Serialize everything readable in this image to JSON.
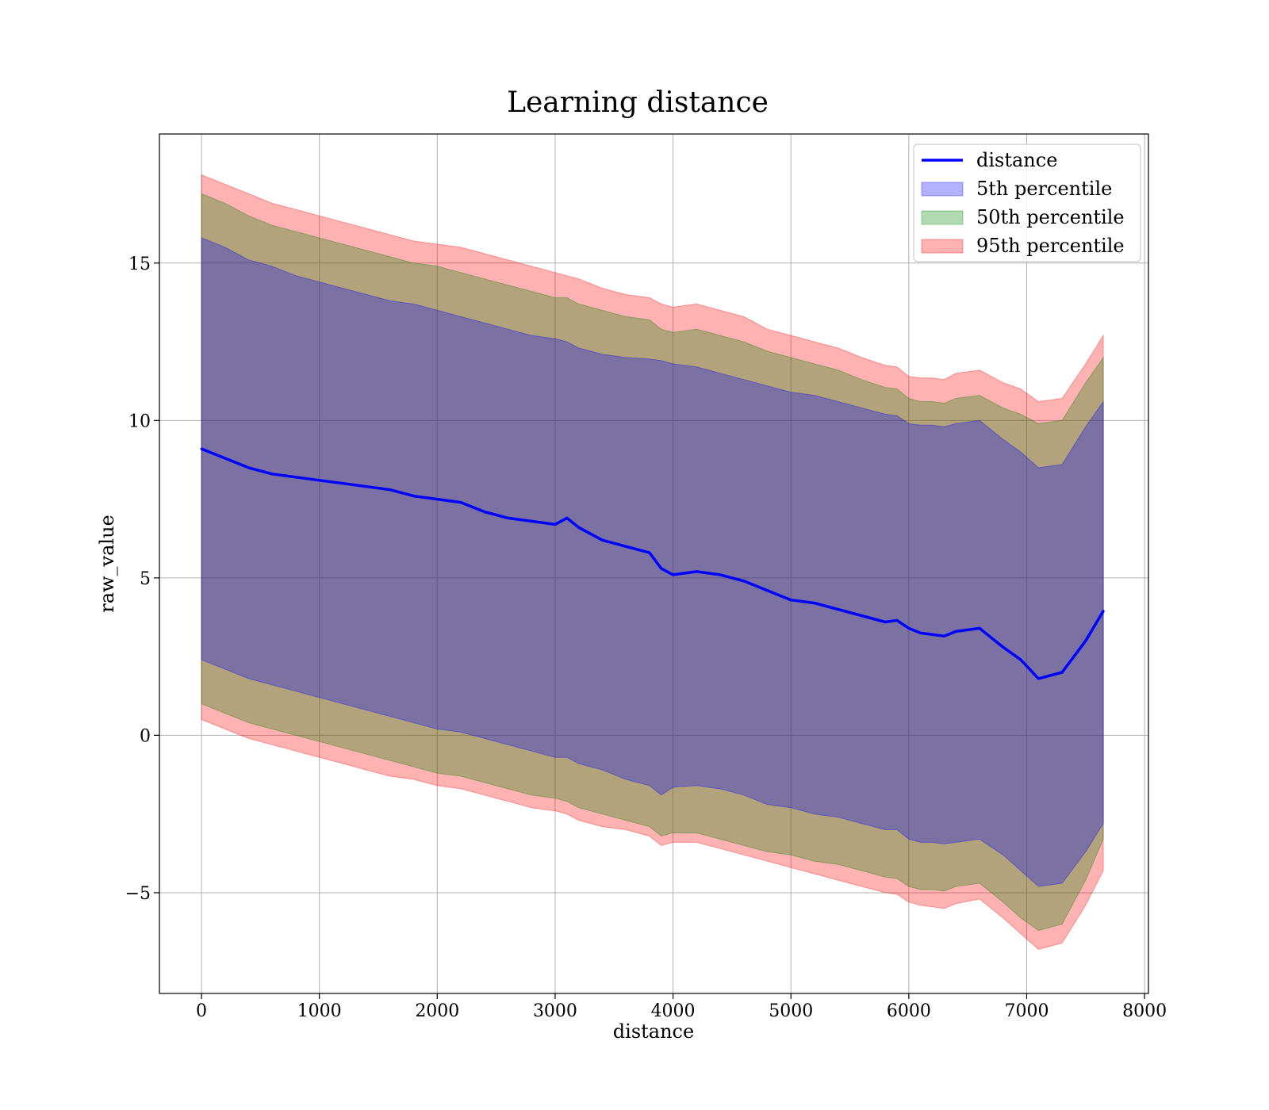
{
  "chart_data": {
    "type": "area",
    "title": "Learning distance",
    "xlabel": "distance",
    "ylabel": "raw_value",
    "xlim": [
      -357,
      8033
    ],
    "ylim": [
      -8.2,
      19.1
    ],
    "xticks": [
      0,
      1000,
      2000,
      3000,
      4000,
      5000,
      6000,
      7000,
      8000
    ],
    "xtick_labels": [
      "0",
      "1000",
      "2000",
      "3000",
      "4000",
      "5000",
      "6000",
      "7000",
      "8000"
    ],
    "yticks": [
      -5,
      0,
      5,
      10,
      15
    ],
    "ytick_labels": [
      "−5",
      "0",
      "5",
      "10",
      "15"
    ],
    "grid": true,
    "legend_position": "top-right",
    "x": [
      0,
      200,
      400,
      600,
      800,
      1000,
      1200,
      1400,
      1600,
      1800,
      2000,
      2200,
      2400,
      2600,
      2800,
      3000,
      3100,
      3200,
      3400,
      3600,
      3800,
      3900,
      4000,
      4200,
      4400,
      4600,
      4800,
      5000,
      5200,
      5400,
      5600,
      5800,
      5900,
      6000,
      6100,
      6200,
      6300,
      6400,
      6600,
      6800,
      6950,
      7100,
      7300,
      7500,
      7650
    ],
    "series": [
      {
        "name": "distance",
        "kind": "line",
        "color": "#0000ff",
        "values": [
          9.1,
          8.8,
          8.5,
          8.3,
          8.2,
          8.1,
          8.0,
          7.9,
          7.8,
          7.6,
          7.5,
          7.4,
          7.1,
          6.9,
          6.8,
          6.7,
          6.9,
          6.6,
          6.2,
          6.0,
          5.8,
          5.3,
          5.1,
          5.2,
          5.1,
          4.9,
          4.6,
          4.3,
          4.2,
          4.0,
          3.8,
          3.6,
          3.65,
          3.4,
          3.25,
          3.2,
          3.15,
          3.3,
          3.4,
          2.8,
          2.4,
          1.8,
          2.0,
          3.0,
          3.95
        ]
      },
      {
        "name": "5th percentile",
        "kind": "band",
        "color": "#0000ff",
        "upper": [
          15.8,
          15.5,
          15.1,
          14.9,
          14.6,
          14.4,
          14.2,
          14.0,
          13.8,
          13.7,
          13.5,
          13.3,
          13.1,
          12.9,
          12.7,
          12.6,
          12.5,
          12.3,
          12.1,
          12.0,
          11.95,
          11.9,
          11.8,
          11.7,
          11.5,
          11.3,
          11.1,
          10.9,
          10.8,
          10.6,
          10.4,
          10.2,
          10.15,
          9.9,
          9.85,
          9.85,
          9.8,
          9.9,
          10.0,
          9.4,
          9.0,
          8.5,
          8.6,
          9.8,
          10.6
        ],
        "lower": [
          2.4,
          2.1,
          1.8,
          1.6,
          1.4,
          1.2,
          1.0,
          0.8,
          0.6,
          0.4,
          0.2,
          0.1,
          -0.1,
          -0.3,
          -0.5,
          -0.7,
          -0.7,
          -0.9,
          -1.1,
          -1.4,
          -1.6,
          -1.9,
          -1.65,
          -1.6,
          -1.7,
          -1.9,
          -2.2,
          -2.3,
          -2.5,
          -2.6,
          -2.8,
          -3.0,
          -3.0,
          -3.3,
          -3.4,
          -3.4,
          -3.45,
          -3.4,
          -3.3,
          -3.8,
          -4.3,
          -4.8,
          -4.7,
          -3.7,
          -2.8
        ]
      },
      {
        "name": "50th percentile",
        "kind": "band",
        "color": "#008000",
        "upper": [
          17.2,
          16.9,
          16.5,
          16.2,
          16.0,
          15.8,
          15.6,
          15.4,
          15.2,
          15.0,
          14.9,
          14.7,
          14.5,
          14.3,
          14.1,
          13.9,
          13.9,
          13.7,
          13.5,
          13.3,
          13.2,
          12.9,
          12.8,
          12.9,
          12.7,
          12.5,
          12.2,
          12.0,
          11.8,
          11.6,
          11.3,
          11.05,
          11.0,
          10.7,
          10.6,
          10.6,
          10.55,
          10.7,
          10.8,
          10.4,
          10.2,
          9.9,
          10.0,
          11.2,
          12.0
        ],
        "lower": [
          1.0,
          0.7,
          0.4,
          0.2,
          0.0,
          -0.2,
          -0.4,
          -0.6,
          -0.8,
          -1.0,
          -1.2,
          -1.3,
          -1.5,
          -1.7,
          -1.9,
          -2.0,
          -2.1,
          -2.3,
          -2.5,
          -2.7,
          -2.9,
          -3.2,
          -3.1,
          -3.1,
          -3.3,
          -3.5,
          -3.7,
          -3.8,
          -4.0,
          -4.1,
          -4.3,
          -4.5,
          -4.55,
          -4.8,
          -4.9,
          -4.9,
          -4.95,
          -4.8,
          -4.7,
          -5.3,
          -5.8,
          -6.2,
          -6.0,
          -4.6,
          -3.3
        ]
      },
      {
        "name": "95th percentile",
        "kind": "band",
        "color": "#ff0000",
        "upper": [
          17.8,
          17.5,
          17.2,
          16.9,
          16.7,
          16.5,
          16.3,
          16.1,
          15.9,
          15.7,
          15.6,
          15.5,
          15.3,
          15.1,
          14.9,
          14.7,
          14.6,
          14.5,
          14.2,
          14.0,
          13.9,
          13.7,
          13.6,
          13.7,
          13.5,
          13.3,
          12.9,
          12.7,
          12.5,
          12.3,
          12.0,
          11.75,
          11.7,
          11.4,
          11.35,
          11.35,
          11.3,
          11.5,
          11.6,
          11.2,
          11.0,
          10.6,
          10.7,
          11.8,
          12.7
        ],
        "lower": [
          0.5,
          0.2,
          -0.1,
          -0.3,
          -0.5,
          -0.7,
          -0.9,
          -1.1,
          -1.3,
          -1.4,
          -1.6,
          -1.7,
          -1.9,
          -2.1,
          -2.3,
          -2.4,
          -2.5,
          -2.7,
          -2.9,
          -3.0,
          -3.2,
          -3.5,
          -3.4,
          -3.4,
          -3.6,
          -3.8,
          -4.0,
          -4.2,
          -4.4,
          -4.6,
          -4.8,
          -5.0,
          -5.05,
          -5.3,
          -5.4,
          -5.45,
          -5.5,
          -5.35,
          -5.2,
          -5.8,
          -6.3,
          -6.8,
          -6.6,
          -5.4,
          -4.3
        ]
      }
    ]
  }
}
